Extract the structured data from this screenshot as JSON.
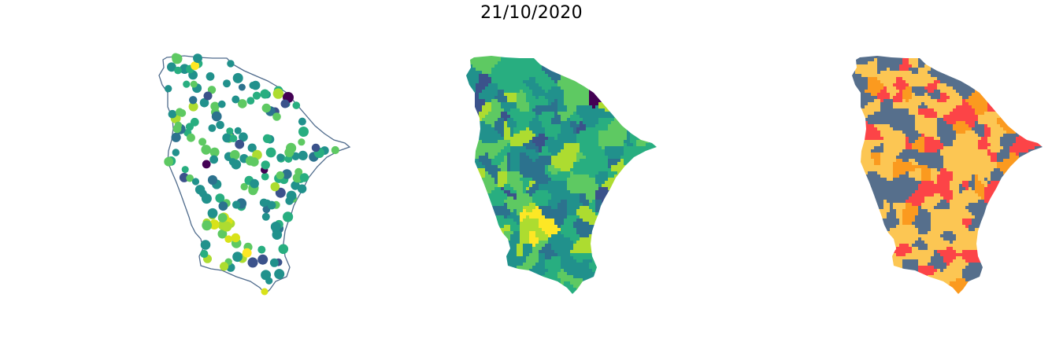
{
  "title": "21/10/2020",
  "panels": [
    {
      "type": "point-map",
      "outline_color": "#4f6b8c"
    },
    {
      "type": "choropleth",
      "palette": [
        "#440154",
        "#3b528b",
        "#2c728e",
        "#21918c",
        "#28ae80",
        "#5ec962",
        "#addc30",
        "#fde725"
      ]
    },
    {
      "type": "categorical-choropleth",
      "palette": [
        "#fcc653",
        "#566f8c",
        "#fc4447",
        "#fb9a1f"
      ]
    }
  ]
}
